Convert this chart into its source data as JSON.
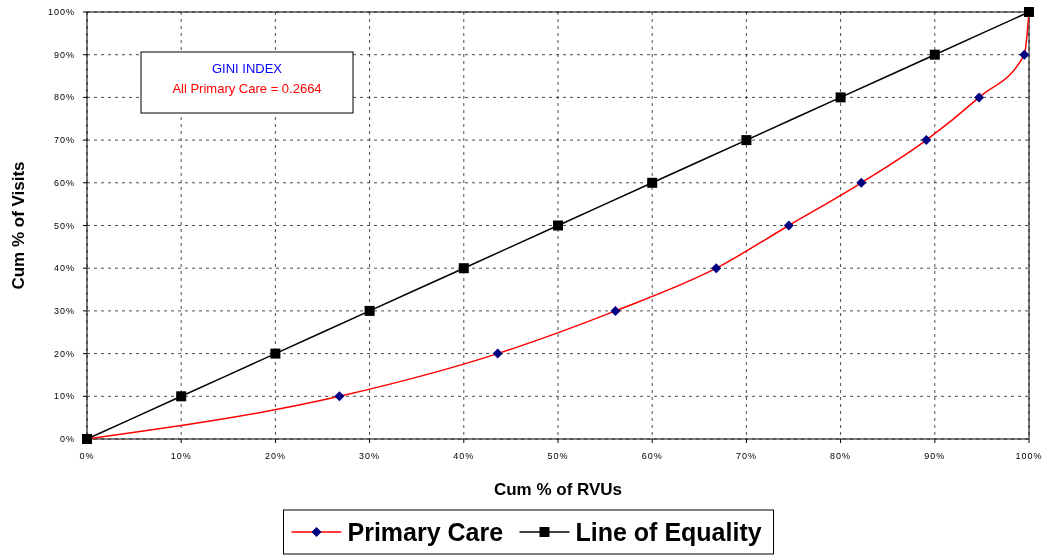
{
  "chart_data": {
    "type": "line",
    "xlabel": "Cum % of RVUs",
    "ylabel": "Cum % of Visits",
    "annotations": [
      "GINI INDEX",
      "All Primary Care = 0.2664"
    ],
    "xlim": [
      0,
      100
    ],
    "ylim": [
      0,
      100
    ],
    "xticks": [
      {
        "value": 0,
        "label": "0%"
      },
      {
        "value": 10,
        "label": "10%"
      },
      {
        "value": 20,
        "label": "20%"
      },
      {
        "value": 30,
        "label": "30%"
      },
      {
        "value": 40,
        "label": "40%"
      },
      {
        "value": 50,
        "label": "50%"
      },
      {
        "value": 60,
        "label": "60%"
      },
      {
        "value": 70,
        "label": "70%"
      },
      {
        "value": 80,
        "label": "80%"
      },
      {
        "value": 90,
        "label": "90%"
      },
      {
        "value": 100,
        "label": "100%"
      }
    ],
    "yticks": [
      {
        "value": 0,
        "label": "0%"
      },
      {
        "value": 10,
        "label": "10%"
      },
      {
        "value": 20,
        "label": "20%"
      },
      {
        "value": 30,
        "label": "30%"
      },
      {
        "value": 40,
        "label": "40%"
      },
      {
        "value": 50,
        "label": "50%"
      },
      {
        "value": 60,
        "label": "60%"
      },
      {
        "value": 70,
        "label": "70%"
      },
      {
        "value": 80,
        "label": "80%"
      },
      {
        "value": 90,
        "label": "90%"
      },
      {
        "value": 100,
        "label": "100%"
      }
    ],
    "grid": true,
    "legend": "bottom",
    "line_style": "solid",
    "series": [
      {
        "name": "Primary Care",
        "color": "#ff0000",
        "marker": "diamond",
        "colors": [
          "#000080",
          "#000080",
          "#000080",
          "#000080",
          "#000080",
          "#000080",
          "#000080",
          "#000080",
          "#000080",
          "#000080",
          "#000080"
        ],
        "x": [
          0,
          26.8,
          43.6,
          56.1,
          66.8,
          74.5,
          82.2,
          89.1,
          94.7,
          99.5,
          100
        ],
        "values": [
          0,
          10,
          20,
          30,
          40,
          50,
          60,
          70,
          80,
          90,
          100
        ]
      },
      {
        "name": "Line of Equality",
        "color": "#000000",
        "marker": "square",
        "x": [
          0,
          10,
          20,
          30,
          40,
          50,
          60,
          70,
          80,
          90,
          100
        ],
        "values": [
          0,
          10,
          20,
          30,
          40,
          50,
          60,
          70,
          80,
          90,
          100
        ]
      }
    ]
  }
}
